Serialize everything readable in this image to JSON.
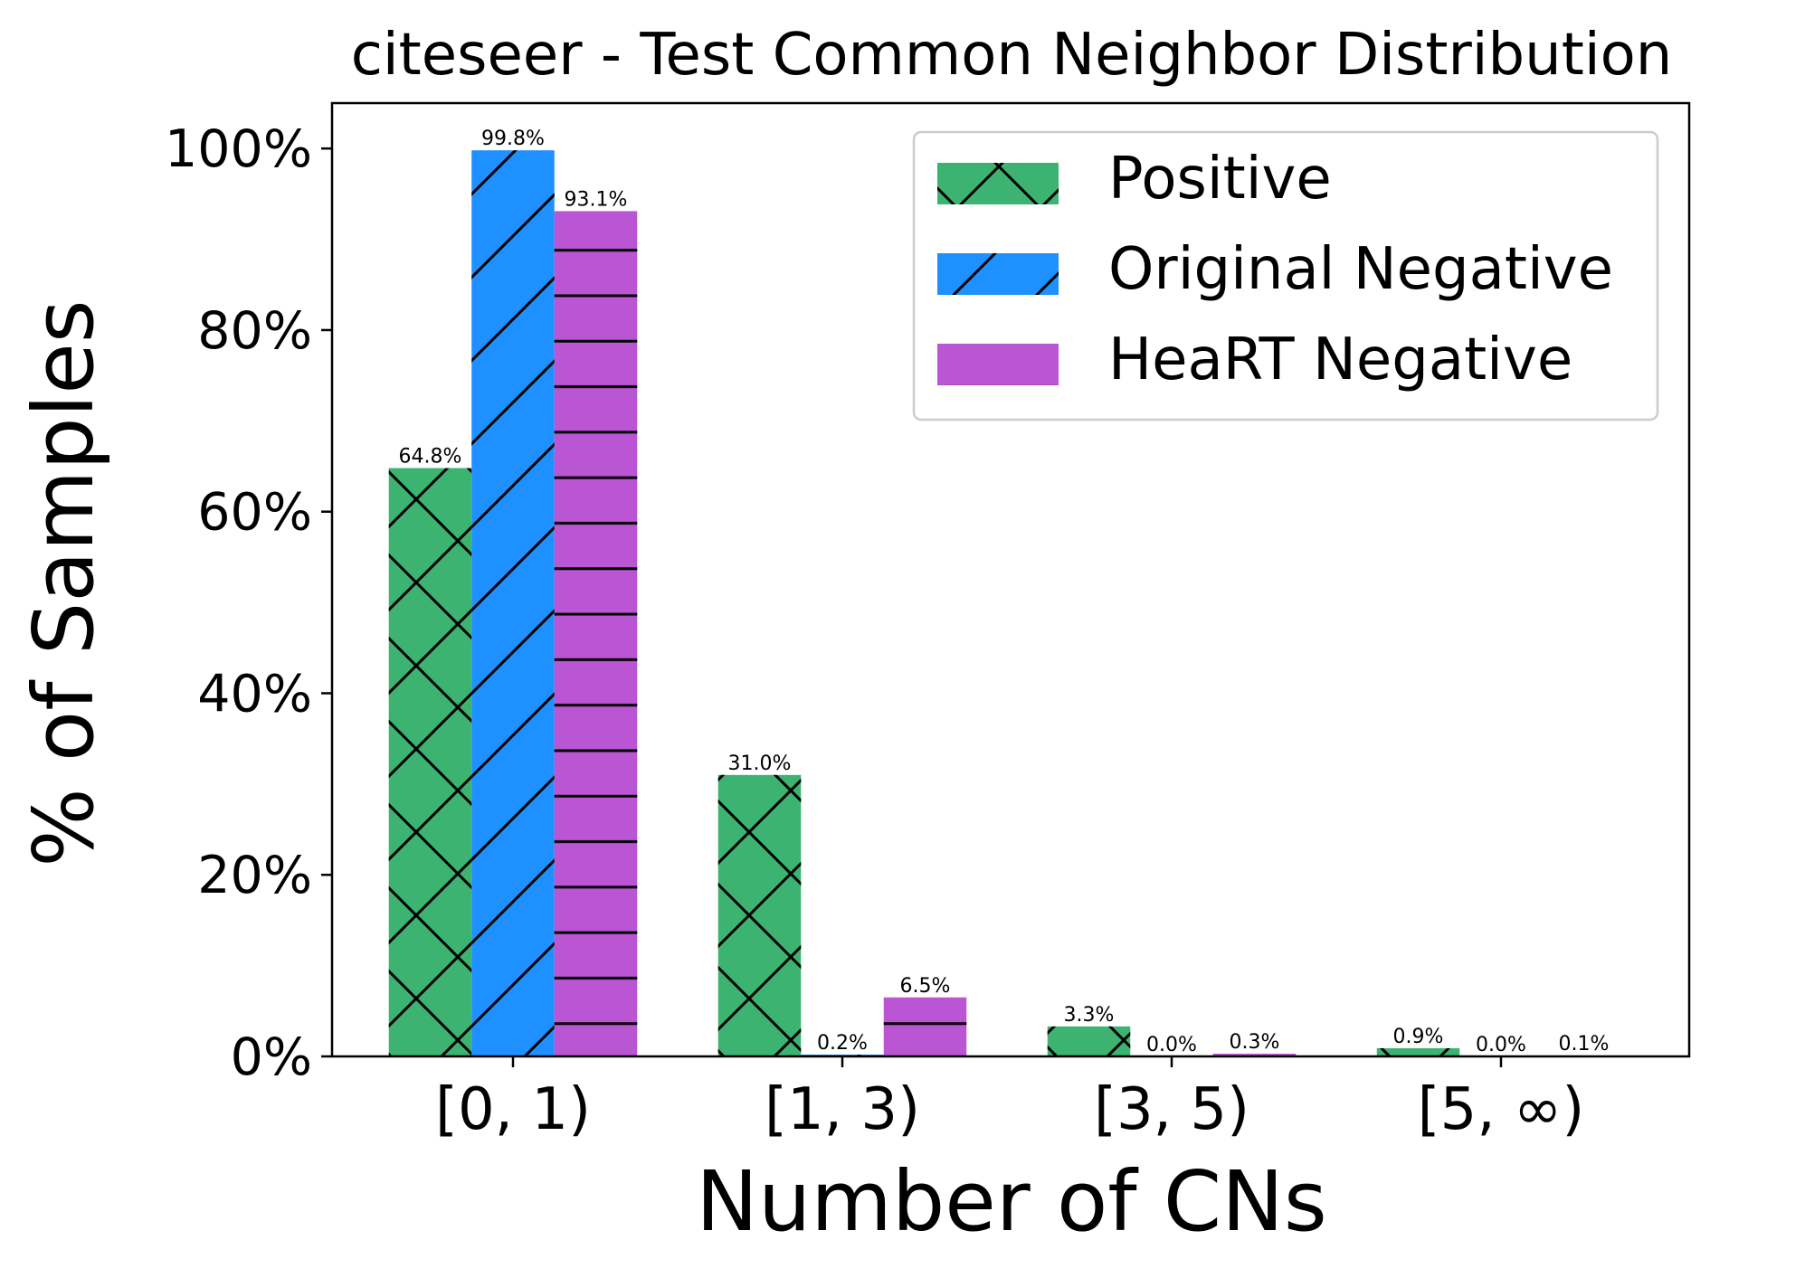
{
  "chart_data": {
    "type": "bar",
    "title": "citeseer - Test Common Neighbor Distribution",
    "xlabel": "Number of CNs",
    "ylabel": "% of Samples",
    "categories": [
      "[0, 1)",
      "[1, 3)",
      "[3, 5)",
      "[5, ∞)"
    ],
    "ylim": [
      0,
      105
    ],
    "yticks": [
      0,
      20,
      40,
      60,
      80,
      100
    ],
    "ytick_labels": [
      "0%",
      "20%",
      "40%",
      "60%",
      "80%",
      "100%"
    ],
    "grid": false,
    "legend_position": "top-right",
    "series": [
      {
        "name": "Positive",
        "color": "#3CB371",
        "hatch": "cross",
        "values": [
          64.8,
          31.0,
          3.3,
          0.9
        ],
        "labels": [
          "64.8%",
          "31.0%",
          "3.3%",
          "0.9%"
        ]
      },
      {
        "name": "Original Negative",
        "color": "#1E90FF",
        "hatch": "diagonal",
        "values": [
          99.8,
          0.2,
          0.0,
          0.0
        ],
        "labels": [
          "99.8%",
          "0.2%",
          "0.0%",
          "0.0%"
        ]
      },
      {
        "name": "HeaRT Negative",
        "color": "#BA55D3",
        "hatch": "horizontal",
        "values": [
          93.1,
          6.5,
          0.3,
          0.1
        ],
        "labels": [
          "93.1%",
          "6.5%",
          "0.3%",
          "0.1%"
        ]
      }
    ]
  }
}
